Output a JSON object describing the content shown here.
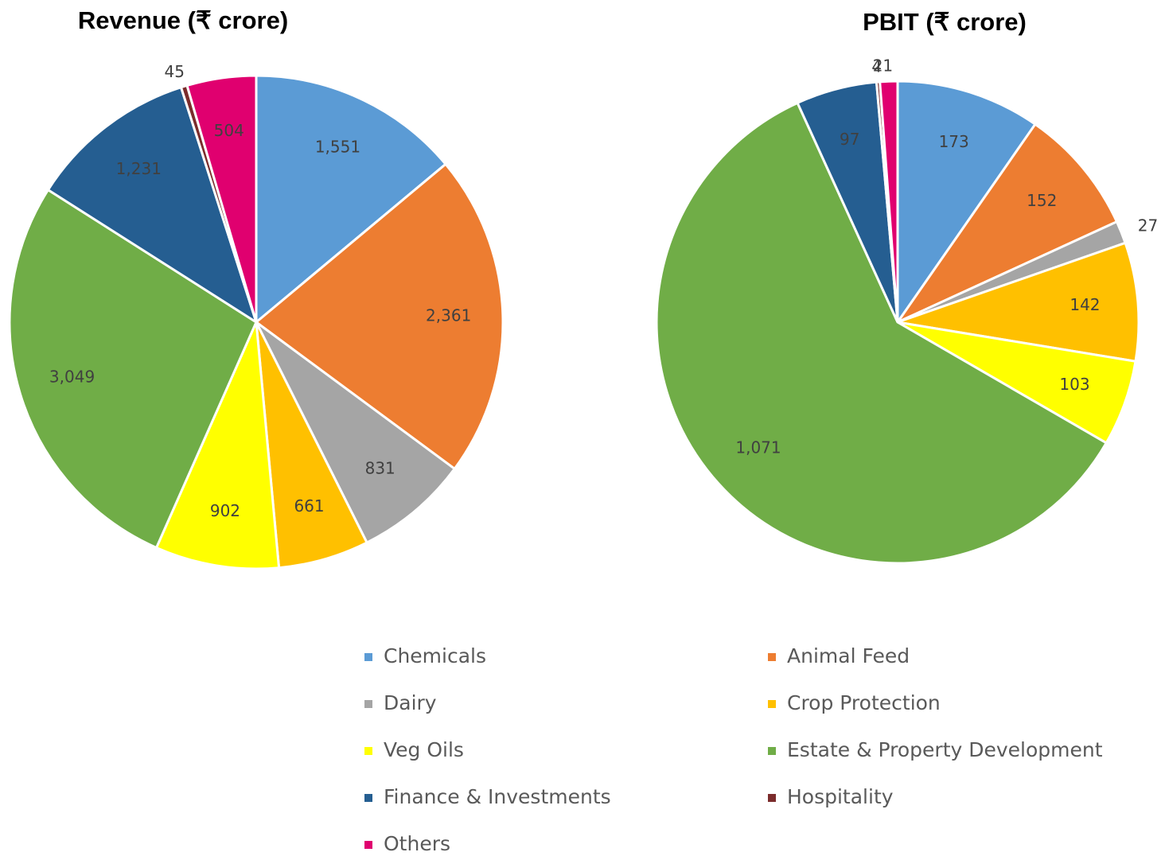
{
  "chart_data": [
    {
      "type": "pie",
      "title": "Revenue (₹ crore)",
      "values": [
        1551,
        2361,
        831,
        661,
        902,
        3049,
        1231,
        45,
        504
      ],
      "value_labels": [
        "1,551",
        "2,361",
        "831",
        "661",
        "902",
        "3,049",
        "1,231",
        "45",
        "504"
      ]
    },
    {
      "type": "pie",
      "title": "PBIT  (₹ crore)",
      "values": [
        173,
        152,
        27,
        142,
        103,
        1071,
        97,
        4,
        21
      ],
      "value_labels": [
        "173",
        "152",
        "27",
        "142",
        "103",
        "1,071",
        "97",
        "4",
        "21"
      ]
    }
  ],
  "legend": {
    "categories": [
      "Chemicals",
      "Animal Feed",
      "Dairy",
      "Crop Protection",
      "Veg Oils",
      "Estate & Property Development",
      "Finance & Investments",
      "Hospitality",
      "Others"
    ],
    "colors": [
      "#5b9bd5",
      "#ed7d31",
      "#a5a5a5",
      "#ffc000",
      "#ffff00",
      "#70ad47",
      "#255e91",
      "#7b2c2c",
      "#e0006f"
    ]
  }
}
